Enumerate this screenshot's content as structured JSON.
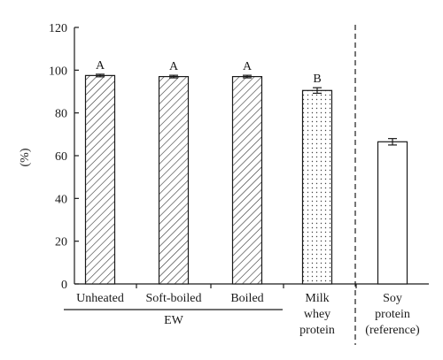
{
  "chart_data": {
    "type": "bar",
    "title": "",
    "xlabel": "",
    "ylabel": "(%)",
    "ylim": [
      0,
      120
    ],
    "yticks": [
      "0",
      "20",
      "40",
      "60",
      "80",
      "100",
      "120"
    ],
    "categories": [
      {
        "lines": [
          "Unheated"
        ],
        "value": 97.5,
        "error": 0.6,
        "label": "A",
        "pattern": "hatch"
      },
      {
        "lines": [
          "Soft-boiled"
        ],
        "value": 97.0,
        "error": 0.6,
        "label": "A",
        "pattern": "hatch"
      },
      {
        "lines": [
          "Boiled"
        ],
        "value": 97.0,
        "error": 0.6,
        "label": "A",
        "pattern": "hatch"
      },
      {
        "lines": [
          "Milk",
          "whey",
          "protein"
        ],
        "value": 90.5,
        "error": 1.3,
        "label": "B",
        "pattern": "dots"
      },
      {
        "lines": [
          "Soy",
          "protein",
          "(reference)"
        ],
        "value": 66.5,
        "error": 1.5,
        "label": "",
        "pattern": "none"
      }
    ],
    "group_label": "EW",
    "reference_divider": "dashed"
  }
}
